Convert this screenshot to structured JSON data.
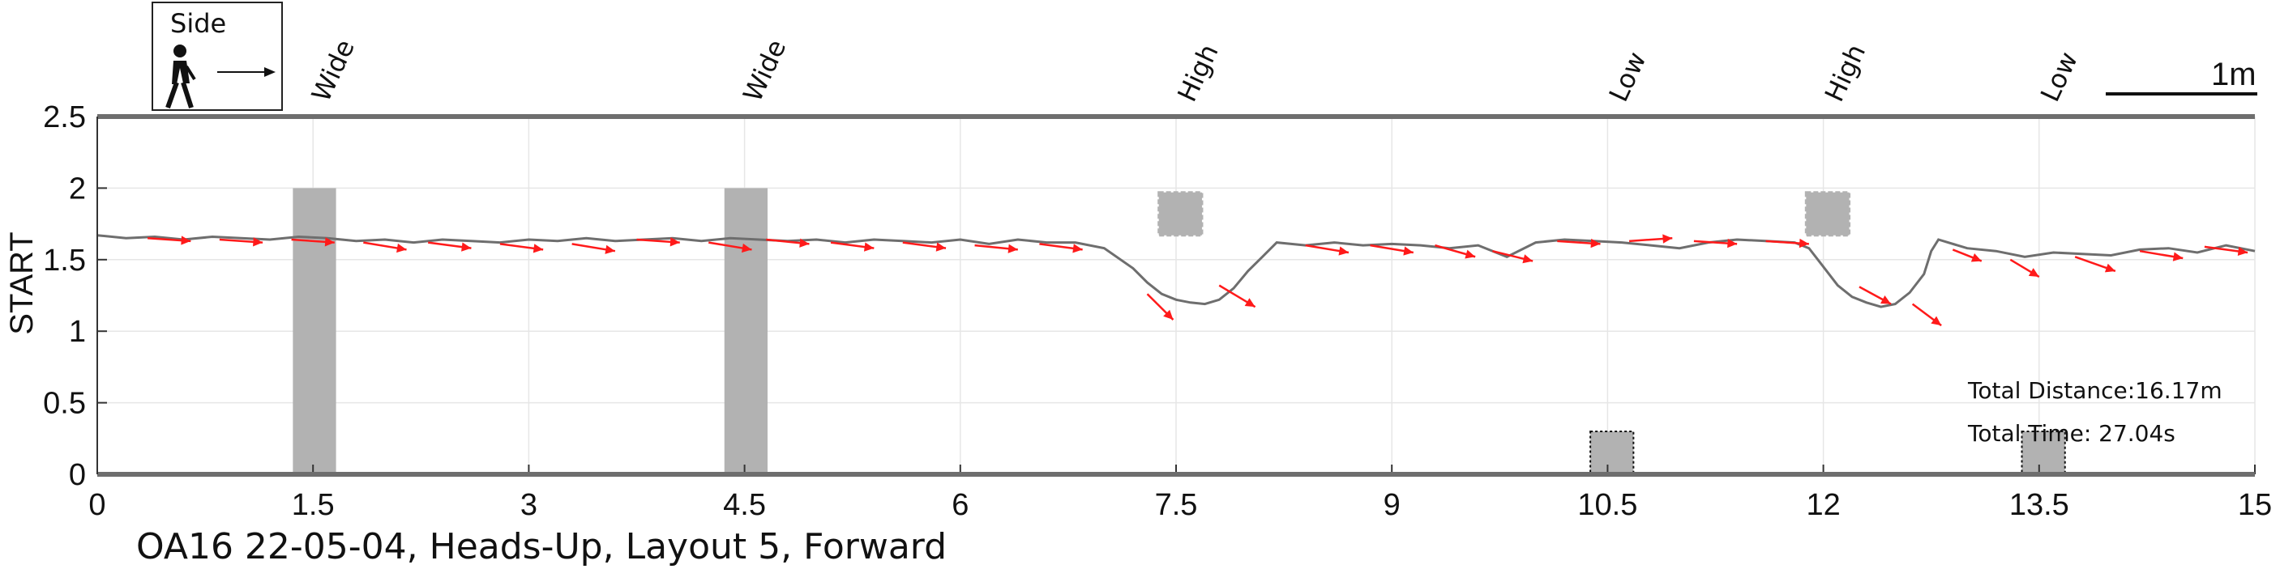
{
  "chart_data": {
    "type": "line",
    "ylabel": "START",
    "xlim": [
      0,
      15
    ],
    "ylim": [
      0,
      2.5
    ],
    "xticks": [
      "0",
      "1.5",
      "3",
      "4.5",
      "6",
      "7.5",
      "9",
      "10.5",
      "12",
      "13.5",
      "15"
    ],
    "yticks": [
      "0",
      "0.5",
      "1",
      "1.5",
      "2",
      "2.5"
    ],
    "grid": true,
    "footer": "OA16 22-05-04, Heads-Up, Layout 5, Forward",
    "side_legend": {
      "label": "Side"
    },
    "scale_bar": {
      "label": "1m",
      "length": 1
    },
    "annotations": [
      "Total Distance:16.17m",
      "Total Time: 27.04s"
    ],
    "obstacles": [
      {
        "label": "Wide",
        "x0": 1.36,
        "x1": 1.66,
        "y0": 0,
        "y1": 2.0
      },
      {
        "label": "Wide",
        "x0": 4.36,
        "x1": 4.66,
        "y0": 0,
        "y1": 2.0
      },
      {
        "label": "High",
        "x0": 7.38,
        "x1": 7.68,
        "y0": 1.67,
        "y1": 1.97
      },
      {
        "label": "Low",
        "x0": 10.38,
        "x1": 10.68,
        "y0": 0,
        "y1": 0.3
      },
      {
        "label": "High",
        "x0": 11.88,
        "x1": 12.18,
        "y0": 1.67,
        "y1": 1.97
      },
      {
        "label": "Low",
        "x0": 13.38,
        "x1": 13.68,
        "y0": 0,
        "y1": 0.3
      }
    ],
    "series": [
      {
        "x": [
          0,
          0.2,
          0.4,
          0.6,
          0.8,
          1.0,
          1.2,
          1.4,
          1.6,
          1.8,
          2.0,
          2.2,
          2.4,
          2.6,
          2.8,
          3.0,
          3.2,
          3.4,
          3.6,
          3.8,
          4.0,
          4.2,
          4.4,
          4.6,
          4.8,
          5.0,
          5.2,
          5.4,
          5.6,
          5.8,
          6.0,
          6.2,
          6.4,
          6.6,
          6.8,
          7.0,
          7.2,
          7.3,
          7.4,
          7.5,
          7.6,
          7.7,
          7.8,
          7.9,
          8.0,
          8.1,
          8.2,
          8.4,
          8.6,
          8.8,
          9.0,
          9.2,
          9.4,
          9.6,
          9.8,
          10.0,
          10.2,
          10.4,
          10.6,
          10.8,
          11.0,
          11.2,
          11.4,
          11.6,
          11.8,
          11.9,
          12.0,
          12.1,
          12.2,
          12.3,
          12.4,
          12.5,
          12.6,
          12.7,
          12.75,
          12.8,
          13.0,
          13.2,
          13.4,
          13.6,
          13.8,
          14.0,
          14.2,
          14.4,
          14.6,
          14.8,
          15.0
        ],
        "y": [
          1.67,
          1.65,
          1.66,
          1.64,
          1.66,
          1.65,
          1.64,
          1.66,
          1.65,
          1.63,
          1.64,
          1.62,
          1.64,
          1.63,
          1.62,
          1.64,
          1.63,
          1.65,
          1.63,
          1.64,
          1.65,
          1.63,
          1.65,
          1.64,
          1.63,
          1.64,
          1.62,
          1.64,
          1.63,
          1.62,
          1.64,
          1.61,
          1.64,
          1.62,
          1.62,
          1.58,
          1.44,
          1.34,
          1.26,
          1.22,
          1.2,
          1.19,
          1.22,
          1.3,
          1.42,
          1.52,
          1.62,
          1.6,
          1.62,
          1.6,
          1.61,
          1.6,
          1.58,
          1.6,
          1.52,
          1.62,
          1.64,
          1.63,
          1.62,
          1.6,
          1.58,
          1.62,
          1.64,
          1.63,
          1.62,
          1.58,
          1.45,
          1.32,
          1.24,
          1.2,
          1.17,
          1.19,
          1.27,
          1.4,
          1.56,
          1.64,
          1.58,
          1.56,
          1.52,
          1.55,
          1.54,
          1.53,
          1.57,
          1.58,
          1.55,
          1.6,
          1.56
        ]
      }
    ],
    "arrows": [
      {
        "x": 0.35,
        "y": 1.65,
        "dx": 0.3,
        "dy": -0.02
      },
      {
        "x": 0.85,
        "y": 1.64,
        "dx": 0.3,
        "dy": -0.02
      },
      {
        "x": 1.35,
        "y": 1.64,
        "dx": 0.3,
        "dy": -0.02
      },
      {
        "x": 1.85,
        "y": 1.62,
        "dx": 0.3,
        "dy": -0.05
      },
      {
        "x": 2.3,
        "y": 1.62,
        "dx": 0.3,
        "dy": -0.04
      },
      {
        "x": 2.8,
        "y": 1.61,
        "dx": 0.3,
        "dy": -0.04
      },
      {
        "x": 3.3,
        "y": 1.61,
        "dx": 0.3,
        "dy": -0.05
      },
      {
        "x": 3.75,
        "y": 1.64,
        "dx": 0.3,
        "dy": -0.02
      },
      {
        "x": 4.25,
        "y": 1.62,
        "dx": 0.3,
        "dy": -0.05
      },
      {
        "x": 4.65,
        "y": 1.64,
        "dx": 0.3,
        "dy": -0.03
      },
      {
        "x": 5.1,
        "y": 1.62,
        "dx": 0.3,
        "dy": -0.04
      },
      {
        "x": 5.6,
        "y": 1.62,
        "dx": 0.3,
        "dy": -0.04
      },
      {
        "x": 6.1,
        "y": 1.6,
        "dx": 0.3,
        "dy": -0.03
      },
      {
        "x": 6.55,
        "y": 1.61,
        "dx": 0.3,
        "dy": -0.04
      },
      {
        "x": 7.3,
        "y": 1.26,
        "dx": 0.18,
        "dy": -0.18
      },
      {
        "x": 7.8,
        "y": 1.32,
        "dx": 0.25,
        "dy": -0.15
      },
      {
        "x": 8.4,
        "y": 1.6,
        "dx": 0.3,
        "dy": -0.05
      },
      {
        "x": 8.85,
        "y": 1.6,
        "dx": 0.3,
        "dy": -0.05
      },
      {
        "x": 9.3,
        "y": 1.6,
        "dx": 0.28,
        "dy": -0.08
      },
      {
        "x": 9.7,
        "y": 1.56,
        "dx": 0.28,
        "dy": -0.07
      },
      {
        "x": 10.15,
        "y": 1.63,
        "dx": 0.3,
        "dy": -0.02
      },
      {
        "x": 10.65,
        "y": 1.63,
        "dx": 0.3,
        "dy": 0.02
      },
      {
        "x": 11.1,
        "y": 1.63,
        "dx": 0.3,
        "dy": -0.02
      },
      {
        "x": 11.6,
        "y": 1.63,
        "dx": 0.3,
        "dy": -0.02
      },
      {
        "x": 12.25,
        "y": 1.31,
        "dx": 0.22,
        "dy": -0.12
      },
      {
        "x": 12.62,
        "y": 1.19,
        "dx": 0.2,
        "dy": -0.15
      },
      {
        "x": 12.9,
        "y": 1.57,
        "dx": 0.2,
        "dy": -0.08
      },
      {
        "x": 13.3,
        "y": 1.5,
        "dx": 0.2,
        "dy": -0.12
      },
      {
        "x": 13.75,
        "y": 1.52,
        "dx": 0.28,
        "dy": -0.1
      },
      {
        "x": 14.2,
        "y": 1.56,
        "dx": 0.3,
        "dy": -0.05
      },
      {
        "x": 14.65,
        "y": 1.59,
        "dx": 0.3,
        "dy": -0.04
      }
    ]
  }
}
